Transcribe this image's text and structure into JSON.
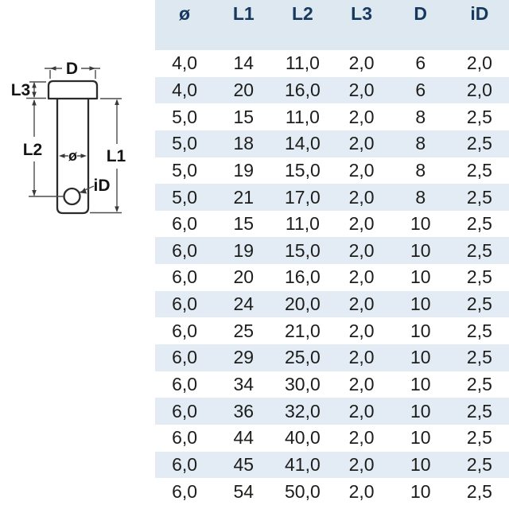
{
  "table": {
    "columns": [
      "ø",
      "L1",
      "L2",
      "L3",
      "D",
      "iD"
    ],
    "rows": [
      [
        "4,0",
        "14",
        "11,0",
        "2,0",
        "6",
        "2,0"
      ],
      [
        "4,0",
        "20",
        "16,0",
        "2,0",
        "6",
        "2,0"
      ],
      [
        "5,0",
        "15",
        "11,0",
        "2,0",
        "8",
        "2,5"
      ],
      [
        "5,0",
        "18",
        "14,0",
        "2,0",
        "8",
        "2,5"
      ],
      [
        "5,0",
        "19",
        "15,0",
        "2,0",
        "8",
        "2,5"
      ],
      [
        "5,0",
        "21",
        "17,0",
        "2,0",
        "8",
        "2,5"
      ],
      [
        "6,0",
        "15",
        "11,0",
        "2,0",
        "10",
        "2,5"
      ],
      [
        "6,0",
        "19",
        "15,0",
        "2,0",
        "10",
        "2,5"
      ],
      [
        "6,0",
        "20",
        "16,0",
        "2,0",
        "10",
        "2,5"
      ],
      [
        "6,0",
        "24",
        "20,0",
        "2,0",
        "10",
        "2,5"
      ],
      [
        "6,0",
        "25",
        "21,0",
        "2,0",
        "10",
        "2,5"
      ],
      [
        "6,0",
        "29",
        "25,0",
        "2,0",
        "10",
        "2,5"
      ],
      [
        "6,0",
        "34",
        "30,0",
        "2,0",
        "10",
        "2,5"
      ],
      [
        "6,0",
        "36",
        "32,0",
        "2,0",
        "10",
        "2,5"
      ],
      [
        "6,0",
        "44",
        "40,0",
        "2,0",
        "10",
        "2,5"
      ],
      [
        "6,0",
        "45",
        "41,0",
        "2,0",
        "10",
        "2,5"
      ],
      [
        "6,0",
        "54",
        "50,0",
        "2,0",
        "10",
        "2,5"
      ]
    ],
    "header_bg": "#dde8f1",
    "alt_row_bg": "#e3ecf4",
    "header_text_color": "#17395e",
    "cell_text_color": "#1d1d1b"
  },
  "diagram": {
    "labels": {
      "head_diameter": "D",
      "head_height": "L3",
      "length_to_hole": "L2",
      "total_length": "L1",
      "pin_diameter": "ø",
      "hole_diameter": "iD"
    },
    "outline_color": "#2b2b2b",
    "dimension_color": "#4d4d4d"
  }
}
